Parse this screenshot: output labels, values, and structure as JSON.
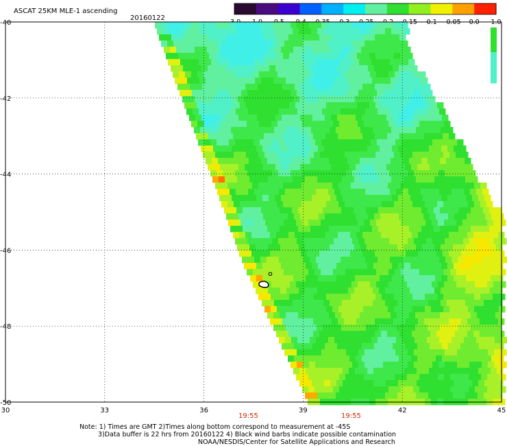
{
  "header": {
    "title": "ASCAT 25KM MLE-1 ascending",
    "date": "20160122"
  },
  "colorbar": {
    "labels": [
      "-3.0",
      "-1.0",
      "-0.5",
      "-0.4",
      "-0.35",
      "-0.3",
      "-0.25",
      "-0.2",
      "-0.15",
      "-0.1",
      "-0.05",
      "0.0",
      "1.0"
    ],
    "colors": [
      "#2a0a30",
      "#4a0a80",
      "#3a00d0",
      "#0060ff",
      "#00b0ff",
      "#00f0f0",
      "#60f0a0",
      "#30e030",
      "#90f020",
      "#f0f000",
      "#ffa000",
      "#ff2000"
    ]
  },
  "map": {
    "lat_labels": [
      "-40",
      "-42",
      "-44",
      "-46",
      "-48",
      "-50"
    ],
    "lon_labels": [
      "30",
      "33",
      "36",
      "39",
      "42",
      "45"
    ],
    "time_labels": [
      "19:55",
      "19:55"
    ],
    "lat_range": [
      -40,
      -50
    ],
    "lon_range": [
      30,
      45
    ],
    "island_lat": -46.9,
    "island_lon": 37.8
  },
  "footer": {
    "note_line1": "Note: 1) Times are GMT 2)Times along bottom correspond to measurement at -45S",
    "note_line2": "3)Data buffer is 22 hrs from 20160122 4) Black wind barbs indicate possible contamination",
    "credit": "NOAA/NESDIS/Center for Satellite Applications and Research"
  }
}
